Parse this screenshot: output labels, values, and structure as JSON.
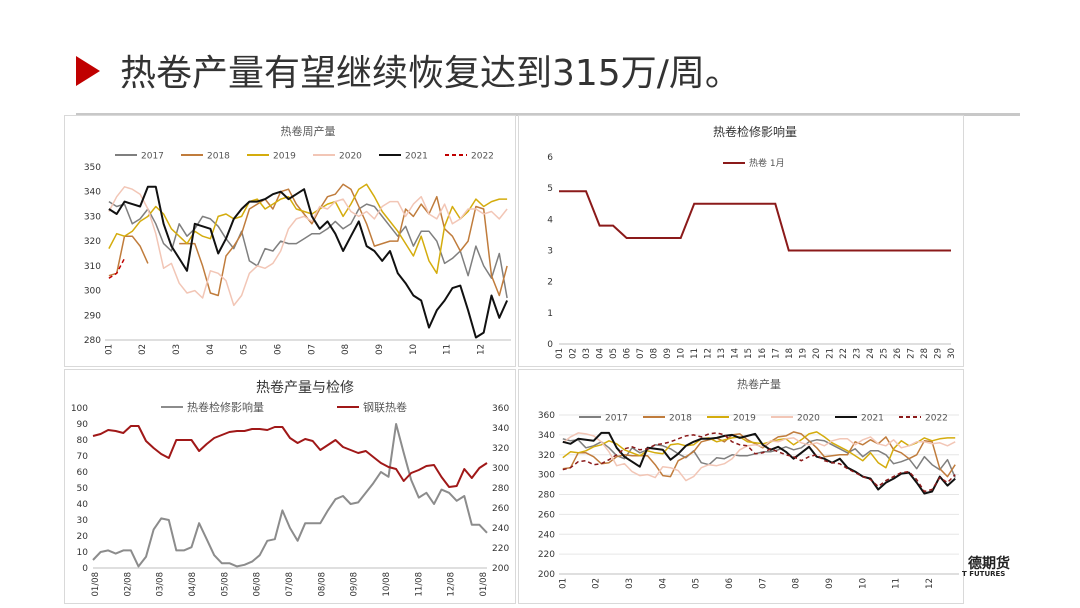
{
  "header": {
    "title": "热卷产量有望继续恢复达到315万/周。"
  },
  "logo": {
    "line1": "德期货",
    "line2": "T FUTURES"
  },
  "colors": {
    "accent": "#c00000",
    "rule": "#c8c8c8"
  },
  "chart_data": [
    {
      "id": "weekly",
      "type": "line",
      "title": "热卷周产量",
      "x_ticks": [
        "01",
        "02",
        "03",
        "04",
        "05",
        "06",
        "07",
        "08",
        "09",
        "10",
        "11",
        "12"
      ],
      "y_ticks": [
        280,
        290,
        300,
        310,
        320,
        330,
        340,
        350
      ],
      "ylim": [
        280,
        350
      ],
      "weeks": 52,
      "legend_position": "top",
      "series": [
        {
          "name": "2017",
          "color": "#7f7f7f",
          "dash": "",
          "values": [
            336,
            334,
            335,
            327,
            329,
            333,
            327,
            319,
            316,
            327,
            322,
            325,
            330,
            329,
            326,
            321,
            317,
            324,
            312,
            310,
            317,
            316,
            320,
            319,
            319,
            321,
            323,
            323,
            325,
            328,
            325,
            327,
            333,
            335,
            334,
            330,
            326,
            322,
            326,
            318,
            324,
            324,
            320,
            311,
            313,
            316,
            306,
            318,
            310,
            305,
            315,
            297
          ]
        },
        {
          "name": "2018",
          "color": "#c07c3c",
          "dash": "",
          "values": [
            306,
            307,
            322,
            322,
            318,
            311,
            null,
            null,
            null,
            319,
            319,
            319,
            310,
            299,
            298,
            314,
            318,
            323,
            333,
            335,
            337,
            333,
            340,
            341,
            335,
            331,
            327,
            333,
            338,
            339,
            343,
            341,
            334,
            327,
            318,
            319,
            320,
            320,
            333,
            330,
            335,
            331,
            338,
            325,
            322,
            316,
            320,
            334,
            333,
            306,
            298,
            310
          ]
        },
        {
          "name": "2019",
          "color": "#d4ac0d",
          "dash": "",
          "values": [
            317,
            323,
            322,
            324,
            328,
            330,
            334,
            331,
            325,
            322,
            319,
            324,
            322,
            321,
            330,
            331,
            329,
            330,
            336,
            337,
            333,
            335,
            337,
            338,
            333,
            332,
            331,
            333,
            335,
            336,
            330,
            335,
            341,
            343,
            338,
            332,
            328,
            324,
            319,
            314,
            322,
            312,
            307,
            326,
            334,
            329,
            332,
            337,
            334,
            336,
            337,
            337
          ]
        },
        {
          "name": "2020",
          "color": "#f2c6b6",
          "dash": "",
          "values": [
            332,
            338,
            342,
            341,
            339,
            333,
            323,
            309,
            311,
            303,
            299,
            300,
            297,
            308,
            307,
            304,
            294,
            298,
            307,
            310,
            309,
            311,
            316,
            325,
            329,
            330,
            328,
            334,
            333,
            336,
            337,
            332,
            330,
            332,
            329,
            334,
            336,
            336,
            330,
            335,
            338,
            331,
            329,
            335,
            327,
            329,
            333,
            333,
            331,
            332,
            329,
            333
          ]
        },
        {
          "name": "2021",
          "color": "#111111",
          "dash": "",
          "values": [
            333,
            331,
            336,
            335,
            334,
            342,
            342,
            327,
            318,
            313,
            308,
            327,
            326,
            325,
            315,
            321,
            329,
            333,
            336,
            336,
            337,
            339,
            340,
            337,
            339,
            341,
            330,
            325,
            328,
            323,
            316,
            322,
            328,
            318,
            316,
            312,
            316,
            307,
            303,
            298,
            296,
            285,
            292,
            296,
            301,
            302,
            292,
            281,
            283,
            298,
            289,
            296
          ]
        },
        {
          "name": "2022",
          "color": "#c00000",
          "dash": "4,3",
          "values": [
            305,
            307,
            313
          ]
        }
      ]
    },
    {
      "id": "maintenance",
      "type": "line",
      "title": "热卷检修影响量",
      "x_ticks": [
        "01",
        "02",
        "03",
        "04",
        "05",
        "06",
        "07",
        "08",
        "09",
        "10",
        "11",
        "12",
        "13",
        "14",
        "15",
        "16",
        "17",
        "18",
        "19",
        "20",
        "21",
        "22",
        "23",
        "24",
        "25",
        "26",
        "27",
        "28",
        "29",
        "30"
      ],
      "y_ticks": [
        0,
        1,
        2,
        3,
        4,
        5,
        6
      ],
      "ylim": [
        0,
        6
      ],
      "legend_position": "top",
      "series": [
        {
          "name": "热卷 1月",
          "color": "#8b1a1a",
          "dash": "",
          "values": [
            4.9,
            4.9,
            4.9,
            3.8,
            3.8,
            3.4,
            3.4,
            3.4,
            3.4,
            3.4,
            4.5,
            4.5,
            4.5,
            4.5,
            4.5,
            4.5,
            4.5,
            3.0,
            3.0,
            3.0,
            3.0,
            3.0,
            3.0,
            3.0,
            3.0,
            3.0,
            3.0,
            3.0,
            3.0,
            3.0
          ]
        }
      ]
    },
    {
      "id": "output-vs-maintenance",
      "type": "line",
      "title": "热卷产量与检修",
      "x_ticks": [
        "01/08",
        "02/08",
        "03/08",
        "04/08",
        "05/08",
        "06/08",
        "07/08",
        "08/08",
        "09/08",
        "10/08",
        "11/08",
        "12/08",
        "01/08"
      ],
      "y_ticks_left": [
        0,
        10,
        20,
        30,
        40,
        50,
        60,
        70,
        80,
        90,
        100
      ],
      "y_ticks_right": [
        200,
        220,
        240,
        260,
        280,
        300,
        320,
        340,
        360
      ],
      "ylim_left": [
        0,
        100
      ],
      "ylim_right": [
        200,
        360
      ],
      "legend_position": "top",
      "series": [
        {
          "name": "热卷检修影响量",
          "color": "#8c8c8c",
          "axis": "left",
          "values": [
            5,
            10,
            11,
            9,
            11,
            11,
            1,
            7,
            24,
            31,
            30,
            11,
            11,
            13,
            28,
            18,
            8,
            3,
            3,
            1,
            2,
            4,
            8,
            17,
            18,
            36,
            25,
            17,
            28,
            28,
            28,
            36,
            43,
            45,
            40,
            41,
            47,
            53,
            60,
            57,
            90,
            72,
            55,
            44,
            47,
            40,
            49,
            47,
            42,
            45,
            27,
            27,
            22
          ]
        },
        {
          "name": "钢联热卷",
          "color": "#a01818",
          "axis": "right",
          "values": [
            332,
            334,
            338,
            337,
            335,
            342,
            342,
            327,
            320,
            314,
            310,
            328,
            328,
            328,
            317,
            324,
            330,
            333,
            336,
            337,
            337,
            339,
            339,
            338,
            341,
            341,
            330,
            325,
            329,
            327,
            318,
            323,
            328,
            321,
            318,
            315,
            317,
            311,
            305,
            301,
            299,
            287,
            295,
            298,
            302,
            303,
            291,
            281,
            282,
            299,
            290,
            300,
            305
          ]
        }
      ]
    },
    {
      "id": "output",
      "type": "line",
      "title": "热卷产量",
      "x_ticks": [
        "01",
        "02",
        "03",
        "04",
        "05",
        "06",
        "07",
        "08",
        "09",
        "10",
        "11",
        "12"
      ],
      "y_ticks": [
        200,
        220,
        240,
        260,
        280,
        300,
        320,
        340,
        360
      ],
      "ylim": [
        200,
        360
      ],
      "weeks": 52,
      "legend_position": "top",
      "series": [
        {
          "name": "2017",
          "color": "#7f7f7f",
          "dash": "",
          "values": [
            336,
            334,
            335,
            327,
            329,
            333,
            327,
            319,
            316,
            327,
            322,
            325,
            330,
            329,
            326,
            321,
            317,
            324,
            312,
            310,
            317,
            316,
            320,
            319,
            319,
            321,
            323,
            323,
            325,
            328,
            325,
            327,
            333,
            335,
            334,
            330,
            326,
            322,
            326,
            318,
            324,
            324,
            320,
            311,
            313,
            316,
            306,
            318,
            310,
            305,
            315,
            297
          ]
        },
        {
          "name": "2018",
          "color": "#c07c3c",
          "dash": "",
          "values": [
            306,
            307,
            322,
            322,
            318,
            311,
            312,
            318,
            320,
            319,
            319,
            319,
            310,
            299,
            298,
            314,
            318,
            323,
            333,
            335,
            337,
            333,
            340,
            341,
            335,
            331,
            327,
            333,
            338,
            339,
            343,
            341,
            334,
            327,
            318,
            319,
            320,
            320,
            333,
            330,
            335,
            331,
            338,
            325,
            322,
            316,
            320,
            334,
            333,
            306,
            298,
            310
          ]
        },
        {
          "name": "2019",
          "color": "#d4ac0d",
          "dash": "",
          "values": [
            317,
            323,
            322,
            324,
            328,
            330,
            334,
            331,
            325,
            322,
            319,
            324,
            322,
            321,
            330,
            331,
            329,
            330,
            336,
            337,
            333,
            335,
            337,
            338,
            333,
            332,
            331,
            333,
            335,
            336,
            330,
            335,
            341,
            343,
            338,
            332,
            328,
            324,
            319,
            314,
            322,
            312,
            307,
            326,
            334,
            329,
            332,
            337,
            334,
            336,
            337,
            337
          ]
        },
        {
          "name": "2020",
          "color": "#f2c6b6",
          "dash": "",
          "values": [
            332,
            338,
            342,
            341,
            339,
            333,
            323,
            309,
            311,
            303,
            299,
            300,
            297,
            308,
            307,
            304,
            294,
            298,
            307,
            310,
            309,
            311,
            316,
            325,
            329,
            330,
            328,
            334,
            333,
            336,
            337,
            332,
            330,
            332,
            329,
            334,
            336,
            336,
            330,
            335,
            338,
            331,
            329,
            335,
            327,
            329,
            333,
            333,
            331,
            332,
            329,
            333
          ]
        },
        {
          "name": "2021",
          "color": "#111111",
          "dash": "",
          "values": [
            333,
            331,
            336,
            335,
            334,
            342,
            342,
            327,
            318,
            313,
            308,
            327,
            326,
            325,
            315,
            321,
            329,
            333,
            336,
            336,
            337,
            339,
            340,
            337,
            339,
            341,
            330,
            325,
            328,
            323,
            316,
            322,
            328,
            318,
            316,
            312,
            316,
            307,
            303,
            298,
            296,
            285,
            292,
            296,
            301,
            302,
            292,
            281,
            283,
            298,
            289,
            296
          ]
        },
        {
          "name": "2022",
          "color": "#8b1a1a",
          "dash": "4,3",
          "values": [
            305,
            307,
            313,
            314,
            310,
            311,
            315,
            320,
            326,
            328,
            325,
            326,
            330,
            331,
            333,
            336,
            339,
            340,
            338,
            341,
            342,
            340,
            333,
            330,
            329,
            321,
            322,
            326,
            323,
            320,
            318,
            314,
            318,
            320,
            314,
            312,
            311,
            306,
            302,
            298,
            295,
            288,
            294,
            298,
            302,
            303,
            295,
            283,
            285,
            297,
            292,
            300
          ]
        }
      ]
    }
  ]
}
